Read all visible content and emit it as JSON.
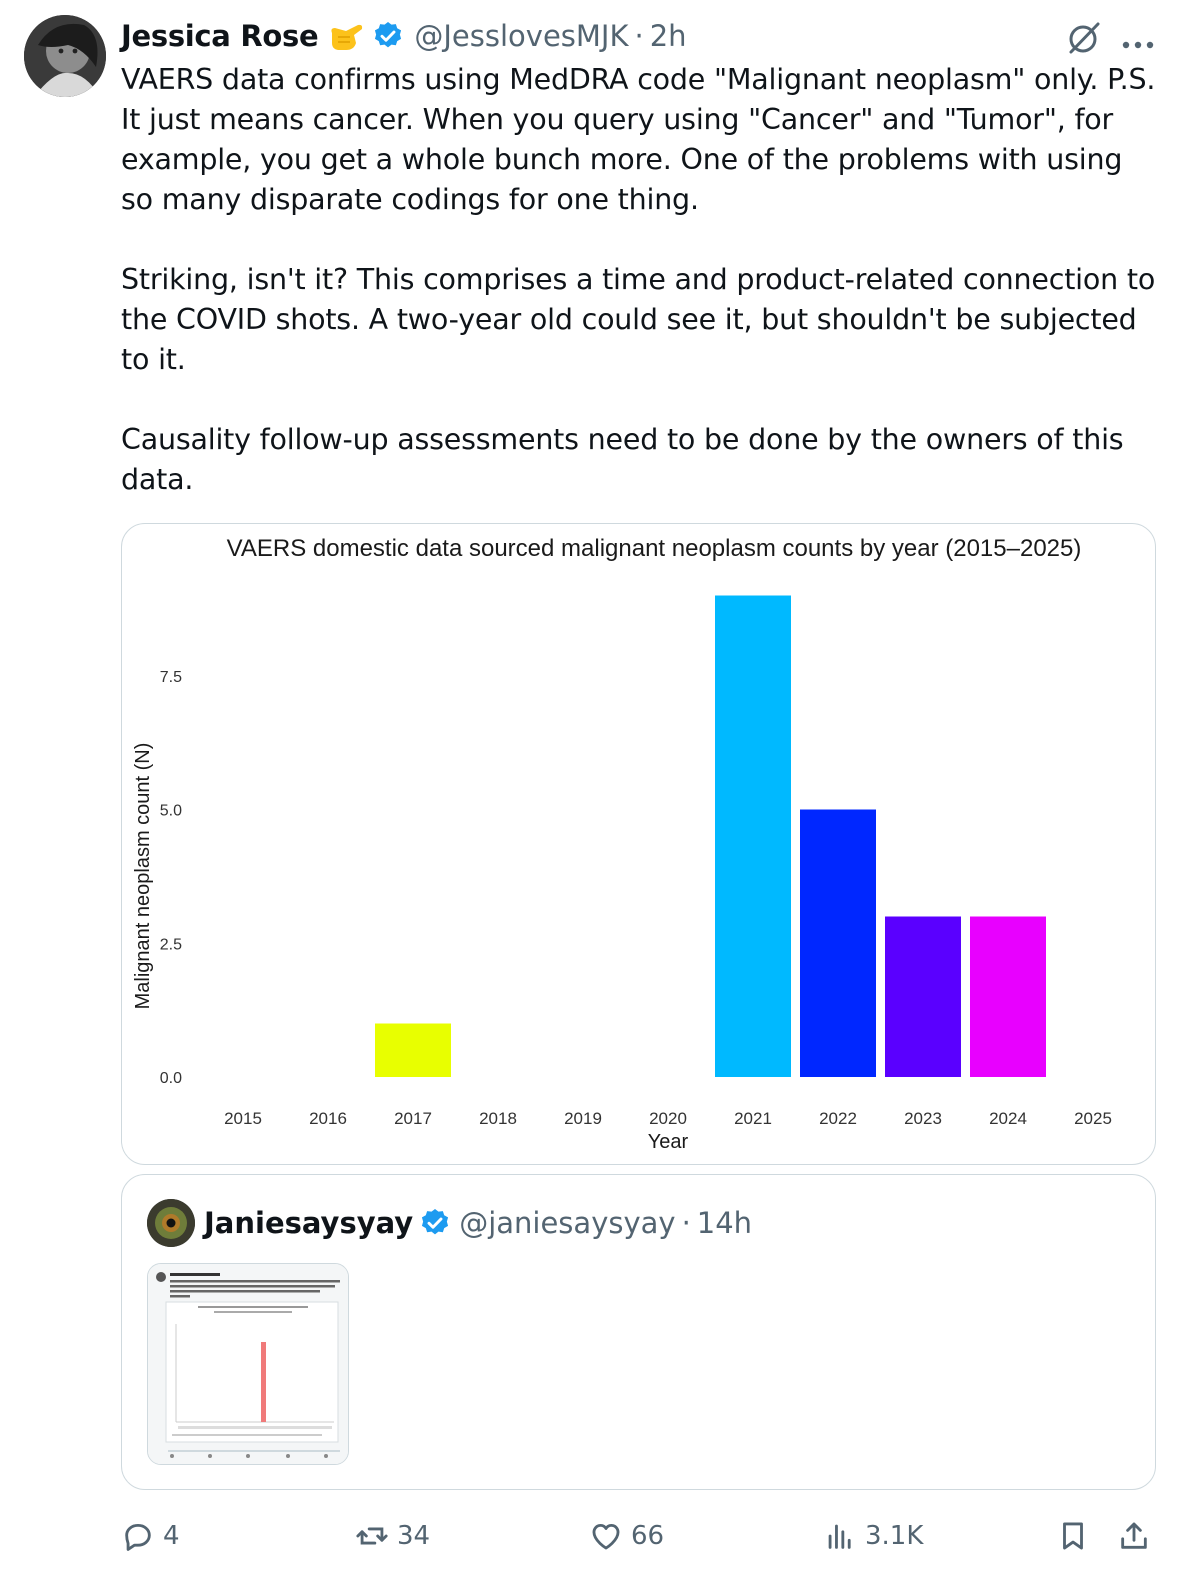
{
  "post": {
    "author_name": "Jessica Rose",
    "author_handle": "@JesslovesMJK",
    "separator": "·",
    "time": "2h",
    "emoji": "call-me-hand-emoji",
    "text": "VAERS data confirms using MedDRA code \"Malignant neoplasm\" only. P.S. It just means cancer. When you query using \"Cancer\" and \"Tumor\", for example, you get a whole bunch more. One of the problems with using so many disparate codings for one thing.\n\nStriking, isn't it? This comprises a time and product-related connection to the COVID shots. A two-year old could see it, but shouldn't be subjected to it.\n\nCausality follow-up assessments need to be done by the owners of this data."
  },
  "chart_data": {
    "type": "bar",
    "title": "VAERS domestic data sourced malignant neoplasm counts by year (2015–2025)",
    "xlabel": "Year",
    "ylabel": "Malignant neoplasm count (N)",
    "categories": [
      "2015",
      "2016",
      "2017",
      "2018",
      "2019",
      "2020",
      "2021",
      "2022",
      "2023",
      "2024",
      "2025"
    ],
    "values": [
      0,
      0,
      1,
      0,
      0,
      0,
      9,
      5,
      3,
      3,
      0
    ],
    "bar_colors": [
      "#e8ff00",
      "#e8ff00",
      "#e8ff00",
      "#e8ff00",
      "#e8ff00",
      "#e8ff00",
      "#00b9ff",
      "#0027ff",
      "#5a00ff",
      "#e800ff",
      "#e800ff"
    ],
    "ylim": [
      0,
      9
    ],
    "yticks": [
      "0.0",
      "2.5",
      "5.0",
      "7.5"
    ],
    "ytick_values": [
      0,
      2.5,
      5,
      7.5
    ],
    "grid": false,
    "legend": "none"
  },
  "quote": {
    "author_name": "Janiesaysyay",
    "author_handle": "@janiesaysyay",
    "separator": "·",
    "time": "14h",
    "thumbnail": "quoted-tweet-screenshot-image"
  },
  "actions": {
    "replies": "4",
    "reposts": "34",
    "likes": "66",
    "views": "3.1K"
  },
  "colors": {
    "text": "#0f1419",
    "secondary": "#536471",
    "verified": "#1d9bf0",
    "border": "#cfd9de"
  }
}
